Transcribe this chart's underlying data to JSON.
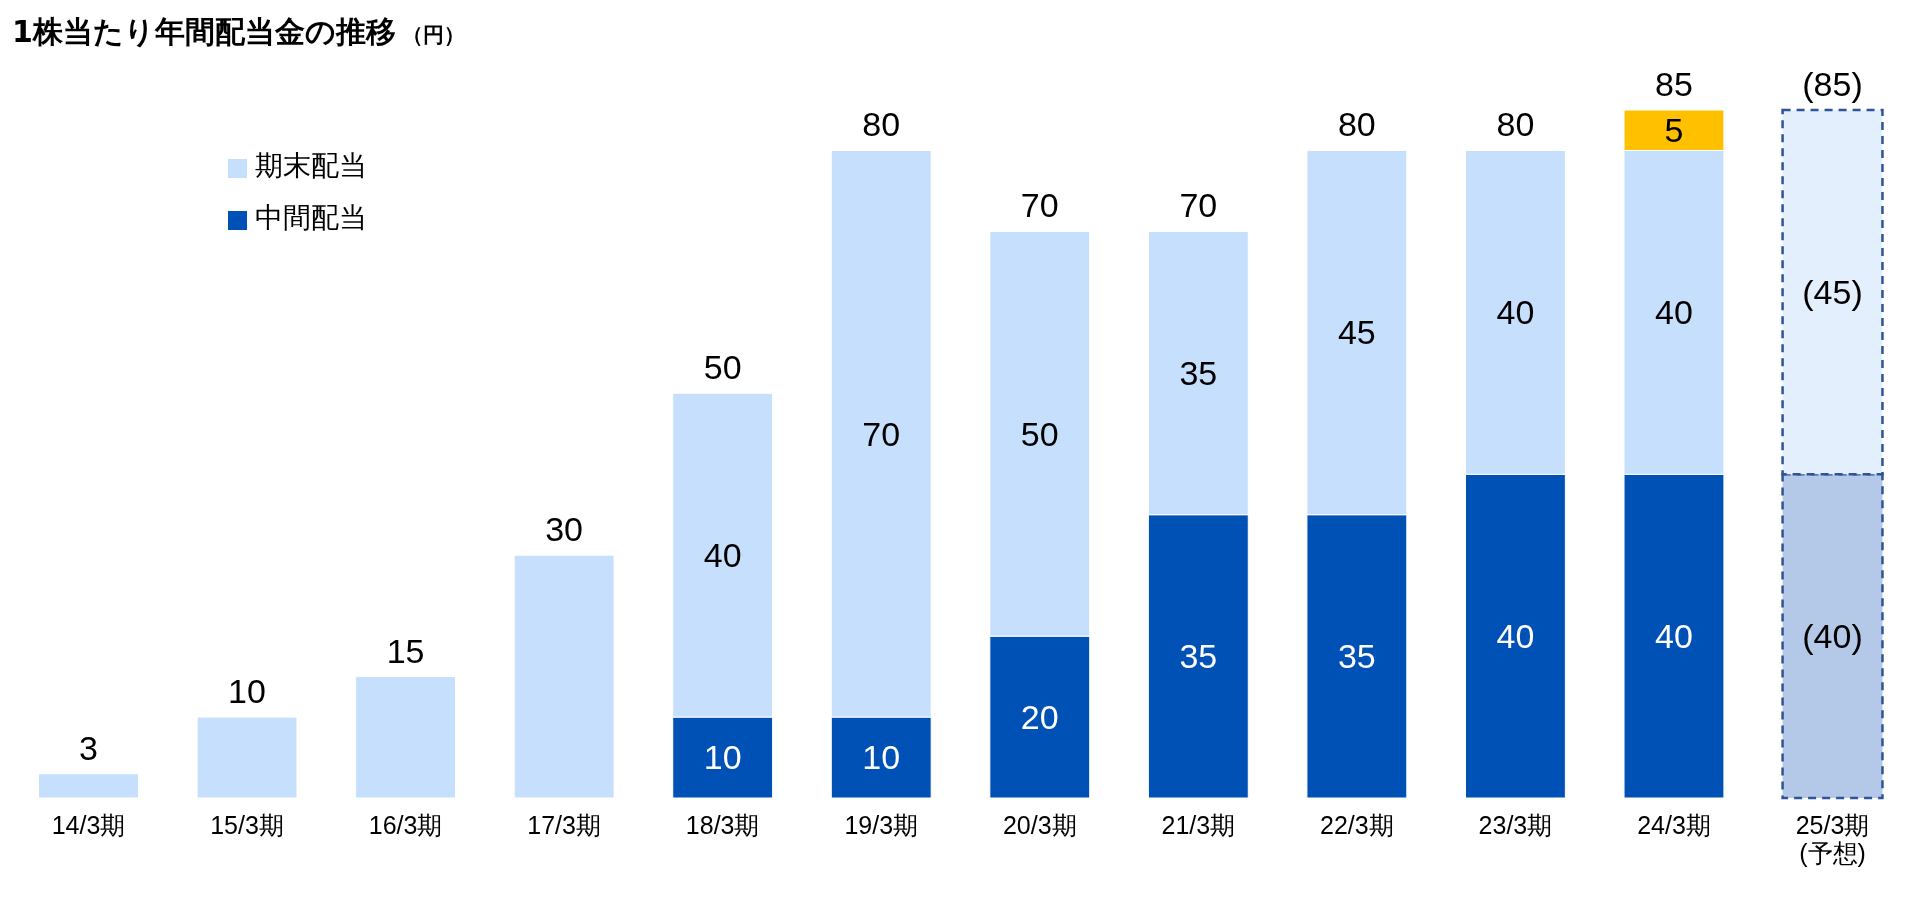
{
  "chart_data": {
    "type": "bar",
    "stacked": true,
    "title": "1株当たり年間配当金の推移",
    "ylabel": "（円）",
    "legend": "top left",
    "categories": [
      "14/3期",
      "15/3期",
      "16/3期",
      "17/3期",
      "18/3期",
      "19/3期",
      "20/3期",
      "21/3期",
      "22/3期",
      "23/3期",
      "24/3期",
      "25/3期\n(予想)"
    ],
    "series": [
      {
        "name": "中間配当",
        "color": "#0051b5",
        "values": [
          null,
          null,
          null,
          null,
          10,
          10,
          20,
          35,
          35,
          40,
          40,
          null
        ],
        "value_labels": [
          null,
          null,
          null,
          null,
          "10",
          "10",
          "20",
          "35",
          "35",
          "40",
          "40",
          null
        ]
      },
      {
        "color": "#b4c9e8",
        "line_style": "dashed",
        "values": [
          null,
          null,
          null,
          null,
          null,
          null,
          null,
          null,
          null,
          null,
          null,
          40
        ],
        "value_labels": [
          null,
          null,
          null,
          null,
          null,
          null,
          null,
          null,
          null,
          null,
          null,
          "(40)"
        ]
      },
      {
        "name": "期末配当",
        "color": "#c5dffc",
        "values": [
          3,
          10,
          15,
          30,
          40,
          70,
          50,
          35,
          45,
          40,
          40,
          null
        ],
        "value_labels": [
          null,
          null,
          null,
          null,
          "40",
          "70",
          "50",
          "35",
          "45",
          "40",
          "40",
          null
        ]
      },
      {
        "color": "#e3effd",
        "line_style": "dashed",
        "values": [
          null,
          null,
          null,
          null,
          null,
          null,
          null,
          null,
          null,
          null,
          null,
          45
        ],
        "value_labels": [
          null,
          null,
          null,
          null,
          null,
          null,
          null,
          null,
          null,
          null,
          null,
          "(45)"
        ]
      },
      {
        "color": "#ffc000",
        "values": [
          null,
          null,
          null,
          null,
          null,
          null,
          null,
          null,
          null,
          null,
          5,
          null
        ],
        "value_labels": [
          null,
          null,
          null,
          null,
          null,
          null,
          null,
          null,
          null,
          null,
          "5",
          null
        ]
      }
    ],
    "totals": [
      "3",
      "10",
      "15",
      "30",
      "50",
      "80",
      "70",
      "70",
      "80",
      "80",
      "85",
      "(85)"
    ]
  }
}
